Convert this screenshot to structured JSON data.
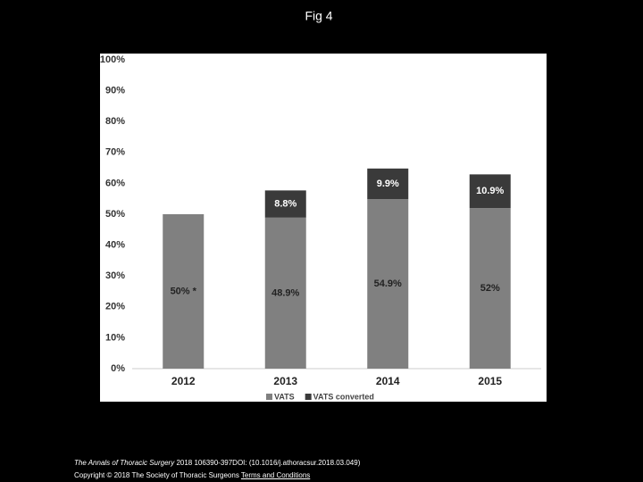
{
  "chart_data": {
    "type": "stacked-bar",
    "title": "Fig 4",
    "categories": [
      "2012",
      "2013",
      "2014",
      "2015"
    ],
    "series": [
      {
        "name": "VATS",
        "color": "#808080",
        "values": [
          50,
          48.9,
          54.9,
          52
        ],
        "value_labels": [
          "50% *",
          "48.9%",
          "54.9%",
          "52%"
        ]
      },
      {
        "name": "VATS converted",
        "color": "#3a3a3a",
        "values": [
          null,
          8.8,
          9.9,
          10.9
        ],
        "value_labels": [
          null,
          "8.8%",
          "9.9%",
          "10.9%"
        ]
      }
    ],
    "ylim": [
      0,
      100
    ],
    "yticks": [
      {
        "value": 0,
        "label": "0%"
      },
      {
        "value": 10,
        "label": "10%"
      },
      {
        "value": 20,
        "label": "20%"
      },
      {
        "value": 30,
        "label": "30%"
      },
      {
        "value": 40,
        "label": "40%"
      },
      {
        "value": 50,
        "label": "50%"
      },
      {
        "value": 60,
        "label": "60%"
      },
      {
        "value": 70,
        "label": "70%"
      },
      {
        "value": 80,
        "label": "80%"
      },
      {
        "value": 90,
        "label": "90%"
      },
      {
        "value": 100,
        "label": "100%"
      }
    ],
    "grid": false
  },
  "footer": {
    "journal": "The Annals of Thoracic Surgery",
    "citation": "2018 106390-397DOI: (10.1016/j.athoracsur.2018.03.049)",
    "copyright": "Copyright © 2018 The Society of Thoracic Surgeons",
    "link": "Terms and Conditions"
  }
}
